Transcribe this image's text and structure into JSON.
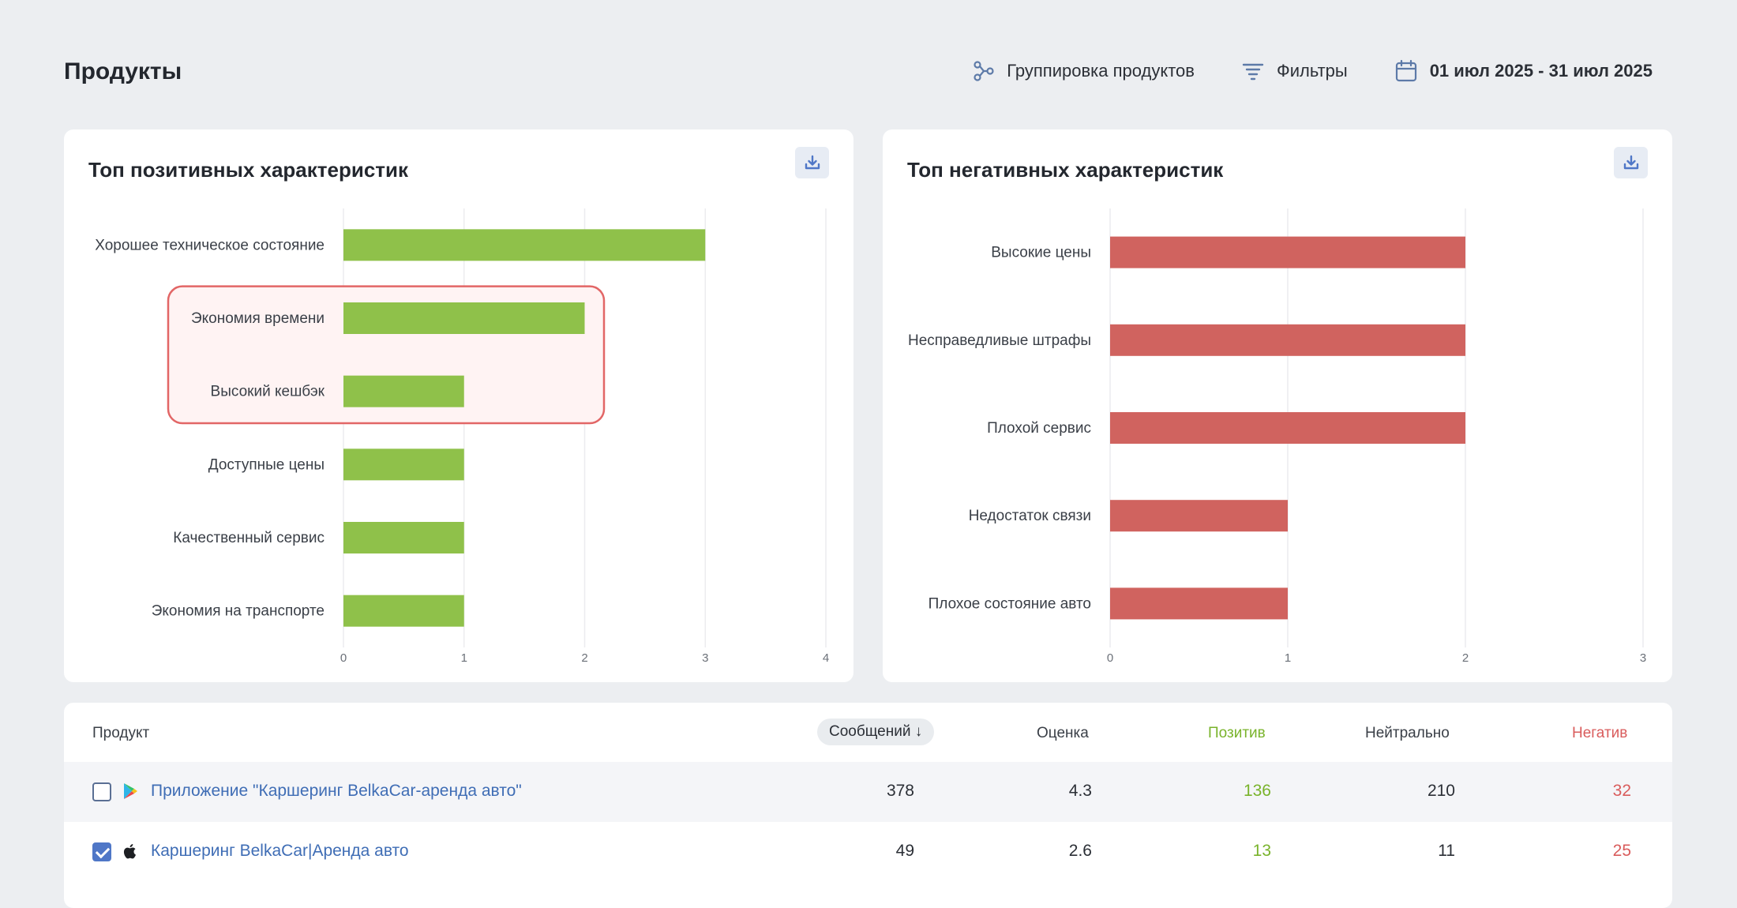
{
  "header": {
    "title": "Продукты",
    "grouping_label": "Группировка продуктов",
    "filters_label": "Фильтры",
    "date_range": "01 июл 2025 - 31 июл 2025"
  },
  "colors": {
    "positive_bar": "#8fc14a",
    "negative_bar": "#d0635f",
    "highlight_border": "#e26666",
    "highlight_fill": "#fff3f3",
    "link": "#3f6db5"
  },
  "chart_data": [
    {
      "type": "bar",
      "orientation": "horizontal",
      "title": "Топ позитивных характеристик",
      "categories": [
        "Хорошее техническое состояние",
        "Экономия времени",
        "Высокий кешбэк",
        "Доступные цены",
        "Качественный сервис",
        "Экономия на транспорте"
      ],
      "values": [
        3,
        2,
        1,
        1,
        1,
        1
      ],
      "xlim": [
        0,
        4
      ],
      "ticks": [
        "0",
        "1",
        "2",
        "3",
        "4"
      ],
      "grid": true,
      "color": "#8fc14a",
      "highlighted_categories": [
        "Экономия времени",
        "Высокий кешбэк"
      ]
    },
    {
      "type": "bar",
      "orientation": "horizontal",
      "title": "Топ негативных характеристик",
      "categories": [
        "Высокие цены",
        "Несправедливые штрафы",
        "Плохой сервис",
        "Недостаток связи",
        "Плохое состояние авто"
      ],
      "values": [
        2,
        2,
        2,
        1,
        1
      ],
      "xlim": [
        0,
        3
      ],
      "ticks": [
        "0",
        "1",
        "2",
        "3"
      ],
      "grid": true,
      "color": "#d0635f"
    }
  ],
  "table": {
    "headers": {
      "product": "Продукт",
      "messages": "Сообщений ↓",
      "rating": "Оценка",
      "positive": "Позитив",
      "neutral": "Нейтрально",
      "negative": "Негатив"
    },
    "rows": [
      {
        "store_icon": "google-play-icon",
        "checked": false,
        "name": "Приложение \"Каршеринг BelkaCar-аренда авто\"",
        "messages": "378",
        "rating": "4.3",
        "positive": "136",
        "neutral": "210",
        "negative": "32"
      },
      {
        "store_icon": "apple-icon",
        "checked": true,
        "name": "Каршеринг BelkaCar|Аренда авто",
        "messages": "49",
        "rating": "2.6",
        "positive": "13",
        "neutral": "11",
        "negative": "25"
      }
    ]
  }
}
